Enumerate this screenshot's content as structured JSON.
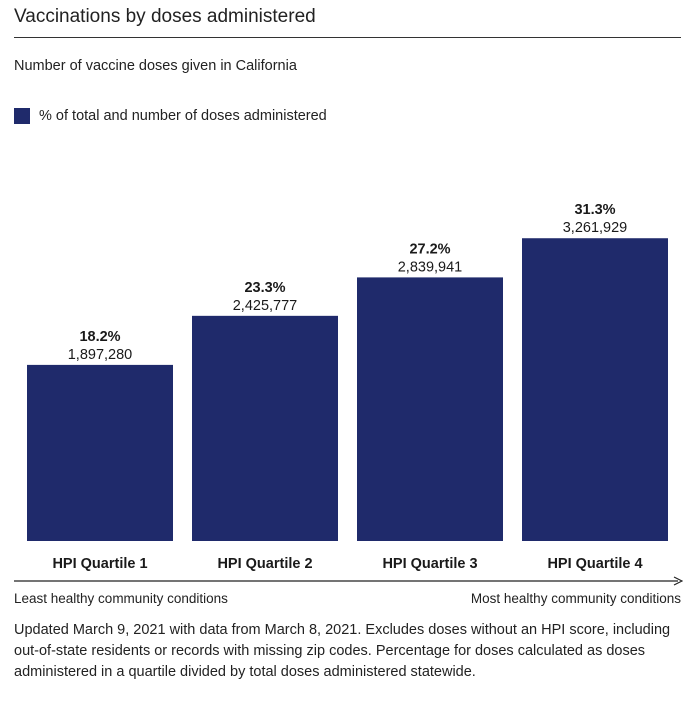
{
  "header": {
    "title": "Vaccinations by doses administered",
    "subtitle": "Number of vaccine doses given in California"
  },
  "legend": {
    "label": "% of total and number of doses administered",
    "color": "#1f2a6b"
  },
  "chart_data": {
    "type": "bar",
    "categories": [
      "HPI Quartile 1",
      "HPI Quartile 2",
      "HPI Quartile 3",
      "HPI Quartile 4"
    ],
    "values": [
      1897280,
      2425777,
      2839941,
      3261929
    ],
    "percent_labels": [
      "18.2%",
      "23.3%",
      "27.2%",
      "31.3%"
    ],
    "value_labels": [
      "1,897,280",
      "2,425,777",
      "2,839,941",
      "3,261,929"
    ],
    "ylim": [
      0,
      3900000
    ],
    "grid": false,
    "legend_position": "top-left",
    "bar_color": "#1f2a6b"
  },
  "axis_notes": {
    "left": "Least healthy community conditions",
    "right": "Most healthy community conditions"
  },
  "footnote": "Updated March 9, 2021 with data from March 8, 2021. Excludes doses without an HPI score, including out-of-state residents or records with missing zip codes. Percentage for doses calculated as doses administered in a quartile divided by total doses administered statewide."
}
